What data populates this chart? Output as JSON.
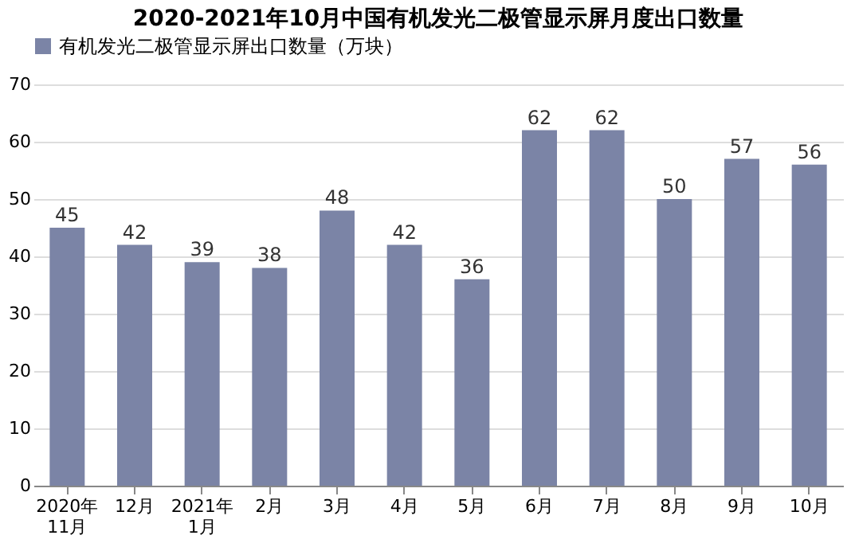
{
  "chart_data": {
    "type": "bar",
    "title": "2020-2021年10月中国有机发光二极管显示屏月度出口数量",
    "categories": [
      "2020年\n11月",
      "12月",
      "2021年\n1月",
      "2月",
      "3月",
      "4月",
      "5月",
      "6月",
      "7月",
      "8月",
      "9月",
      "10月"
    ],
    "series": [
      {
        "name": "有机发光二极管显示屏出口数量（万块）",
        "color": "#7b84a6",
        "values": [
          45,
          42,
          39,
          38,
          48,
          42,
          36,
          62,
          62,
          50,
          57,
          56
        ]
      }
    ],
    "ylim": [
      0,
      70
    ],
    "yticks": [
      0,
      10,
      20,
      30,
      40,
      50,
      60,
      70
    ],
    "grid": "y",
    "legend": "top",
    "data_labels": true
  }
}
